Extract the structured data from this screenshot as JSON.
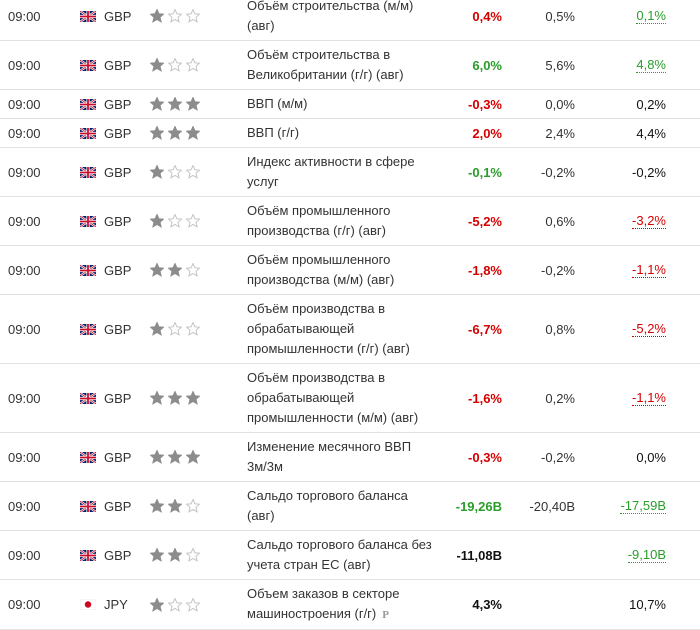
{
  "rows": [
    {
      "time": "09:00",
      "currency": "GBP",
      "importance": 1,
      "event": [
        "Объём строительства (м/м)",
        "(авг)"
      ],
      "actual": "0,4%",
      "actual_state": "worse",
      "forecast": "0,5%",
      "previous": "0,1%",
      "previous_state": "better",
      "previous_revised": true
    },
    {
      "time": "09:00",
      "currency": "GBP",
      "importance": 1,
      "event": [
        "Объём строительства в",
        "Великобритании (г/г) (авг)"
      ],
      "actual": "6,0%",
      "actual_state": "better",
      "forecast": "5,6%",
      "previous": "4,8%",
      "previous_state": "better",
      "previous_revised": true
    },
    {
      "time": "09:00",
      "currency": "GBP",
      "importance": 3,
      "event": [
        "ВВП (м/м)"
      ],
      "actual": "-0,3%",
      "actual_state": "worse",
      "forecast": "0,0%",
      "previous": "0,2%",
      "previous_state": "neutral"
    },
    {
      "time": "09:00",
      "currency": "GBP",
      "importance": 3,
      "event": [
        "ВВП (г/г)"
      ],
      "actual": "2,0%",
      "actual_state": "worse",
      "forecast": "2,4%",
      "previous": "4,4%",
      "previous_state": "neutral"
    },
    {
      "time": "09:00",
      "currency": "GBP",
      "importance": 1,
      "event": [
        "Индекс активности в сфере",
        "услуг"
      ],
      "actual": "-0,1%",
      "actual_state": "better",
      "forecast": "-0,2%",
      "previous": "-0,2%",
      "previous_state": "neutral"
    },
    {
      "time": "09:00",
      "currency": "GBP",
      "importance": 1,
      "event": [
        "Объём промышленного",
        "производства (г/г) (авг)"
      ],
      "actual": "-5,2%",
      "actual_state": "worse",
      "forecast": "0,6%",
      "previous": "-3,2%",
      "previous_state": "worse",
      "previous_revised": true
    },
    {
      "time": "09:00",
      "currency": "GBP",
      "importance": 2,
      "event": [
        "Объём промышленного",
        "производства (м/м) (авг)"
      ],
      "actual": "-1,8%",
      "actual_state": "worse",
      "forecast": "-0,2%",
      "previous": "-1,1%",
      "previous_state": "worse",
      "previous_revised": true
    },
    {
      "time": "09:00",
      "currency": "GBP",
      "importance": 1,
      "event": [
        "Объём производства в",
        "обрабатывающей",
        "промышленности (г/г) (авг)"
      ],
      "actual": "-6,7%",
      "actual_state": "worse",
      "forecast": "0,8%",
      "previous": "-5,2%",
      "previous_state": "worse",
      "previous_revised": true
    },
    {
      "time": "09:00",
      "currency": "GBP",
      "importance": 3,
      "event": [
        "Объём производства в",
        "обрабатывающей",
        "промышленности (м/м) (авг)"
      ],
      "actual": "-1,6%",
      "actual_state": "worse",
      "forecast": "0,2%",
      "previous": "-1,1%",
      "previous_state": "worse",
      "previous_revised": true
    },
    {
      "time": "09:00",
      "currency": "GBP",
      "importance": 3,
      "event": [
        "Изменение месячного ВВП",
        "3м/3м"
      ],
      "actual": "-0,3%",
      "actual_state": "worse",
      "forecast": "-0,2%",
      "previous": "0,0%",
      "previous_state": "neutral"
    },
    {
      "time": "09:00",
      "currency": "GBP",
      "importance": 2,
      "event": [
        "Сальдо торгового баланса",
        "(авг)"
      ],
      "actual": "-19,26B",
      "actual_state": "better",
      "forecast": "-20,40B",
      "previous": "-17,59B",
      "previous_state": "better",
      "previous_revised": true
    },
    {
      "time": "09:00",
      "currency": "GBP",
      "importance": 2,
      "event": [
        "Сальдо торгового баланса без",
        "учета стран ЕС (авг)"
      ],
      "actual": "-11,08B",
      "actual_state": "neutral",
      "previous": "-9,10B",
      "previous_state": "better",
      "previous_revised": true
    },
    {
      "time": "09:00",
      "currency": "JPY",
      "importance": 1,
      "event": [
        "Объем заказов в секторе",
        "машиностроения (г/г)"
      ],
      "note": "P",
      "actual": "4,3%",
      "actual_state": "neutral",
      "previous": "10,7%",
      "previous_state": "neutral"
    }
  ]
}
